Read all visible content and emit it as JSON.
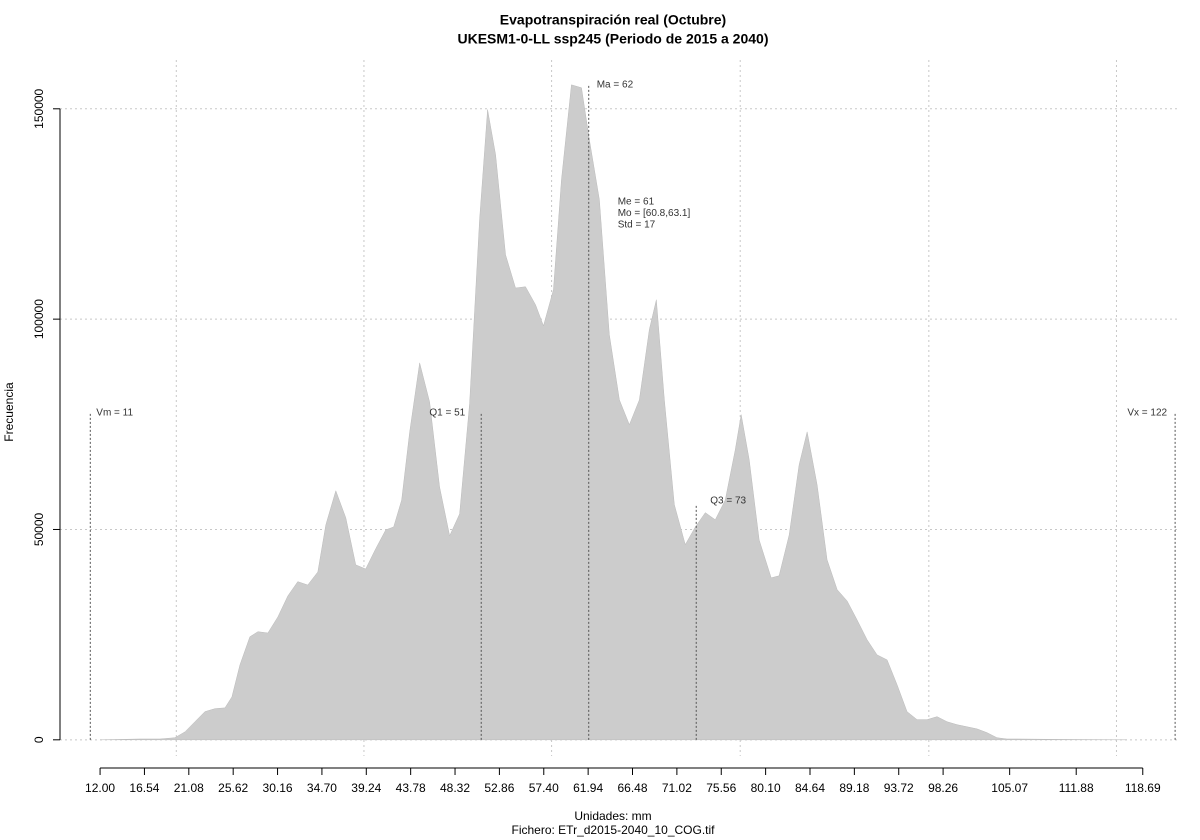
{
  "chart_data": {
    "type": "area",
    "title": "Evapotranspiración real (Octubre)",
    "subtitle": "UKESM1-0-LL ssp245 (Periodo de 2015 a 2040)",
    "x_label": "Unidades: mm",
    "caption": "Fichero: ETr_d2015-2040_10_COG.tif",
    "y_label": "Frecuencia",
    "color": "#cccccc",
    "x": [
      12.0,
      16.09,
      18.13,
      19.66,
      20.69,
      21.71,
      22.73,
      23.75,
      24.78,
      25.49,
      26.31,
      27.33,
      28.15,
      29.17,
      30.19,
      31.21,
      32.23,
      33.25,
      34.28,
      35.1,
      36.12,
      37.14,
      38.16,
      39.18,
      40.2,
      41.23,
      42.04,
      42.86,
      43.68,
      44.7,
      45.72,
      46.74,
      47.77,
      48.79,
      49.81,
      50.83,
      51.65,
      52.47,
      53.49,
      54.51,
      55.53,
      56.56,
      57.37,
      58.39,
      59.21,
      60.23,
      61.26,
      62.07,
      63.09,
      64.11,
      65.14,
      66.16,
      67.18,
      68.2,
      68.92,
      69.74,
      70.76,
      71.88,
      72.91,
      73.93,
      74.95,
      75.97,
      76.99,
      77.6,
      78.42,
      79.44,
      80.67,
      81.48,
      82.51,
      83.53,
      84.35,
      85.37,
      86.39,
      87.42,
      88.44,
      89.46,
      90.48,
      91.5,
      92.53,
      93.55,
      94.57,
      95.59,
      96.62,
      97.64,
      98.66,
      99.68,
      100.71,
      101.73,
      102.75,
      103.77,
      104.79,
      105.82,
      110.11,
      117.06
    ],
    "values": [
      0,
      200,
      200,
      500,
      1900,
      4300,
      6700,
      7400,
      7600,
      10200,
      17800,
      24500,
      25700,
      25400,
      29200,
      34200,
      37600,
      36800,
      39900,
      51100,
      59200,
      52800,
      41600,
      40600,
      45400,
      49900,
      50600,
      57000,
      73200,
      89600,
      80300,
      60100,
      48500,
      53700,
      79900,
      123600,
      149800,
      139100,
      115300,
      107400,
      107700,
      103400,
      98400,
      107000,
      133100,
      155700,
      155000,
      142600,
      128400,
      96300,
      80800,
      74900,
      80800,
      97500,
      104600,
      80800,
      55900,
      46400,
      50600,
      54000,
      52300,
      57000,
      68900,
      77300,
      66600,
      47500,
      38500,
      39000,
      48700,
      65400,
      73200,
      60600,
      42800,
      35700,
      33000,
      28500,
      23800,
      20200,
      19000,
      13100,
      6700,
      4800,
      4800,
      5500,
      4300,
      3600,
      3100,
      2600,
      1700,
      500,
      200,
      200,
      100,
      0
    ],
    "xlim": [
      7.9,
      122.5
    ],
    "ylim": [
      -6700,
      161600
    ],
    "xticks": [
      {
        "value": 12.0,
        "label": "12.00"
      },
      {
        "value": 16.54,
        "label": "16.54"
      },
      {
        "value": 21.08,
        "label": "21.08"
      },
      {
        "value": 25.62,
        "label": "25.62"
      },
      {
        "value": 30.16,
        "label": "30.16"
      },
      {
        "value": 34.7,
        "label": "34.70"
      },
      {
        "value": 39.24,
        "label": "39.24"
      },
      {
        "value": 43.78,
        "label": "43.78"
      },
      {
        "value": 48.32,
        "label": "48.32"
      },
      {
        "value": 52.86,
        "label": "52.86"
      },
      {
        "value": 57.4,
        "label": "57.40"
      },
      {
        "value": 61.94,
        "label": "61.94"
      },
      {
        "value": 66.48,
        "label": "66.48"
      },
      {
        "value": 71.02,
        "label": "71.02"
      },
      {
        "value": 75.56,
        "label": "75.56"
      },
      {
        "value": 80.1,
        "label": "80.10"
      },
      {
        "value": 84.64,
        "label": "84.64"
      },
      {
        "value": 89.18,
        "label": "89.18"
      },
      {
        "value": 93.72,
        "label": "93.72"
      },
      {
        "value": 98.26,
        "label": "98.26"
      },
      {
        "value": 105.07,
        "label": "105.07"
      },
      {
        "value": 111.88,
        "label": "111.88"
      },
      {
        "value": 118.69,
        "label": "118.69"
      }
    ],
    "yticks": [
      0,
      50000,
      100000,
      150000
    ],
    "xgrid": [
      19.8,
      39.0,
      58.2,
      77.5,
      96.8,
      116.0
    ],
    "grid": true,
    "markers": [
      {
        "label": "Vm = 11",
        "value": 11
      },
      {
        "label": "Q1 = 51",
        "value": 51
      },
      {
        "label": "Ma = 62",
        "value": 62
      },
      {
        "label": "Q3 = 73",
        "value": 73
      },
      {
        "label": "Vx = 122",
        "value": 122
      }
    ],
    "stats": [
      "Me = 61",
      "Mo = [60.8,63.1]",
      "Std = 17"
    ]
  }
}
